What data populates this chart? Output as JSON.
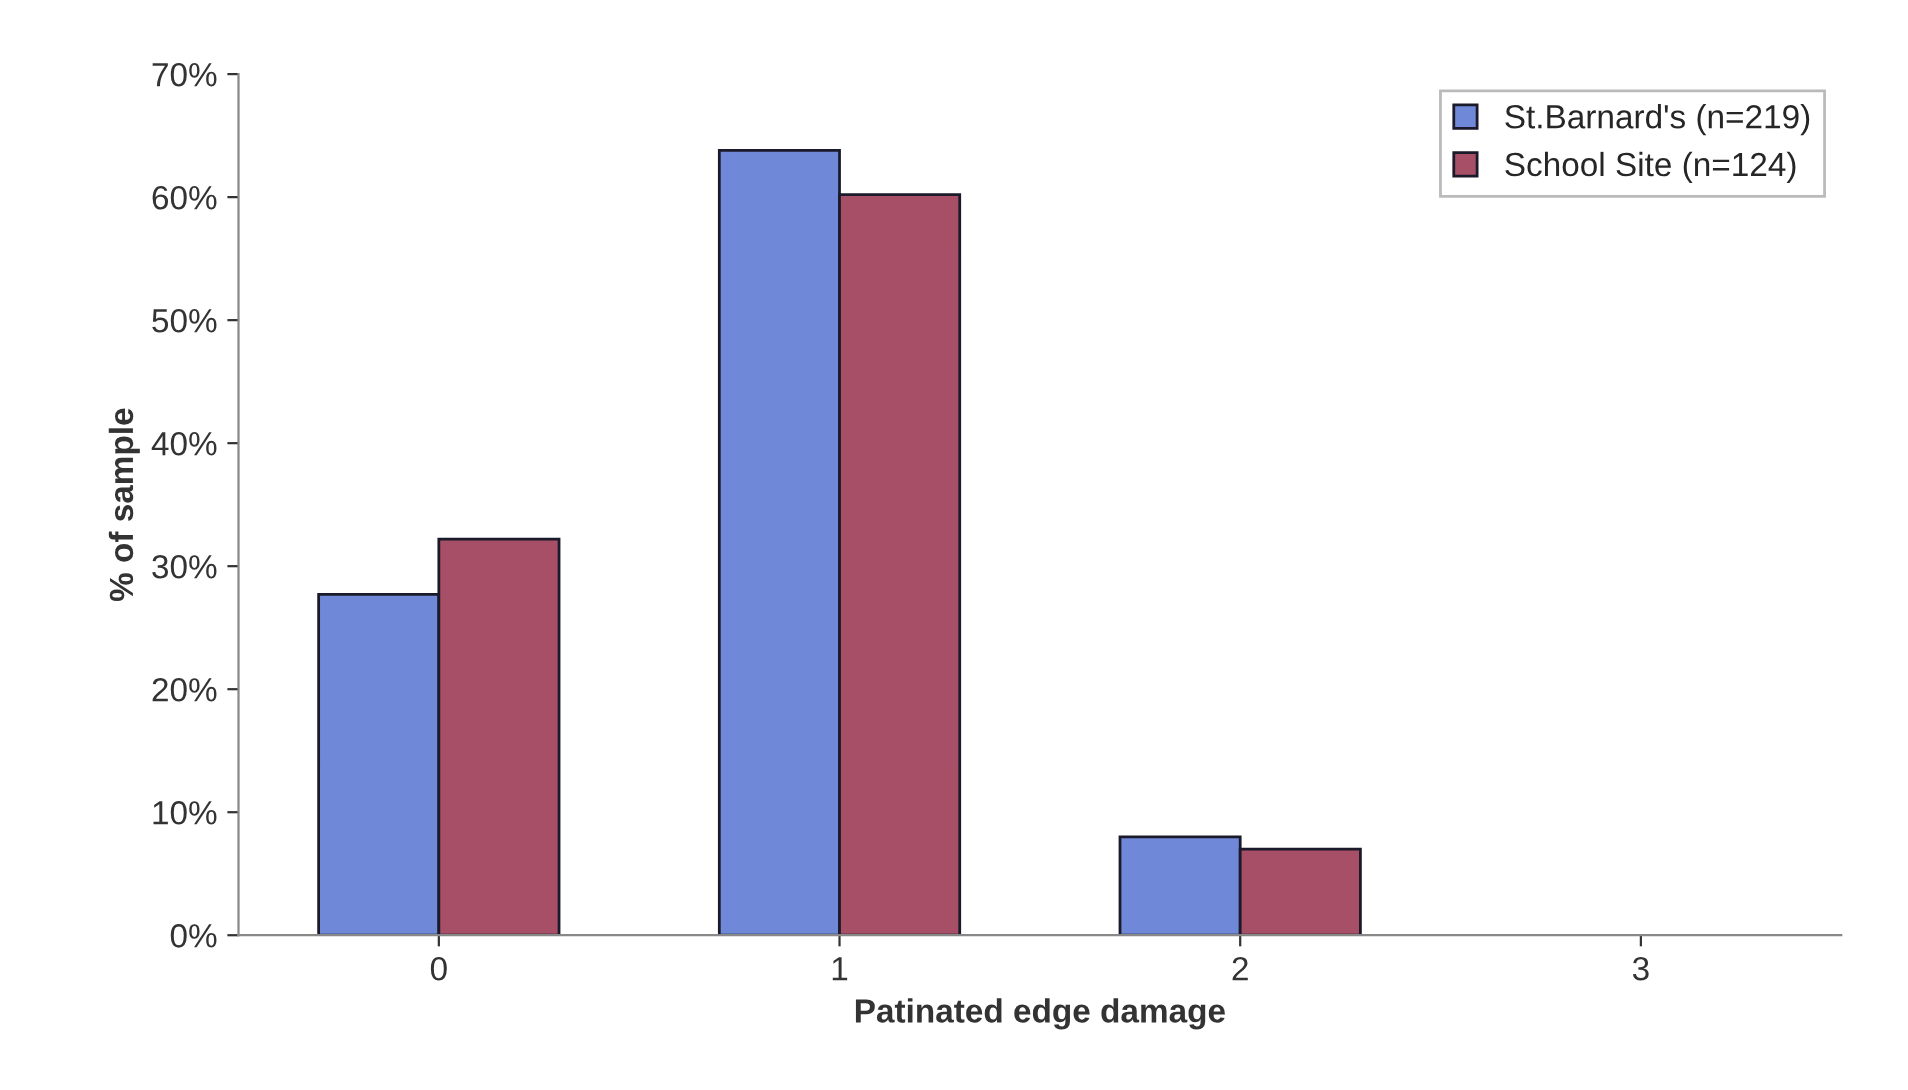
{
  "chart_data": {
    "type": "bar",
    "xlabel": "Patinated edge damage",
    "ylabel": "% of sample",
    "categories": [
      "0",
      "1",
      "2",
      "3"
    ],
    "series": [
      {
        "name": "St.Barnard's (n=219)",
        "color": "#6f88d8",
        "values": [
          27.7,
          63.8,
          8.0,
          0
        ]
      },
      {
        "name": "School Site (n=124)",
        "color": "#a84f68",
        "values": [
          32.2,
          60.2,
          7.0,
          0
        ]
      }
    ],
    "ylim": [
      0,
      70
    ],
    "yticks": [
      {
        "value": 0,
        "label": "0%"
      },
      {
        "value": 10,
        "label": "10%"
      },
      {
        "value": 20,
        "label": "20%"
      },
      {
        "value": 30,
        "label": "30%"
      },
      {
        "value": 40,
        "label": "40%"
      },
      {
        "value": 50,
        "label": "50%"
      },
      {
        "value": 60,
        "label": "60%"
      },
      {
        "value": 70,
        "label": "70%"
      }
    ],
    "grid": false,
    "legend": "top right"
  }
}
